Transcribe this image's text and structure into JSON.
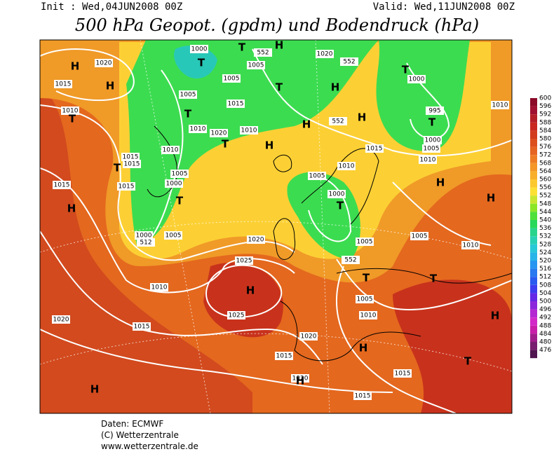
{
  "header": {
    "init": "Init : Wed,04JUN2008 00Z",
    "valid": "Valid: Wed,11JUN2008 00Z",
    "title": "500 hPa Geopot. (gpdm) und Bodendruck (hPa)"
  },
  "footer": [
    "Daten: ECMWF",
    "(C) Wetterzentrale",
    "www.wetterzentrale.de"
  ],
  "legend": {
    "levels": [
      600,
      596,
      592,
      588,
      584,
      580,
      576,
      572,
      568,
      564,
      560,
      556,
      552,
      548,
      544,
      540,
      536,
      532,
      528,
      524,
      520,
      516,
      512,
      508,
      504,
      500,
      496,
      492,
      488,
      484,
      480,
      476
    ],
    "colors": [
      "#8b0a28",
      "#a01030",
      "#b41e28",
      "#c82820",
      "#d23c1e",
      "#dc5020",
      "#e66422",
      "#ee7c24",
      "#f49628",
      "#f8b02c",
      "#fcc830",
      "#fce034",
      "#c8e632",
      "#8ce628",
      "#50e03c",
      "#28d85a",
      "#28d48c",
      "#28d0b4",
      "#28c8d8",
      "#28b4e8",
      "#2896f0",
      "#2878f0",
      "#285af0",
      "#3c3cf0",
      "#6428e6",
      "#8c28dc",
      "#b428d2",
      "#d228c8",
      "#c81eaa",
      "#a01e8c",
      "#781e6e",
      "#501450"
    ]
  },
  "map_labels": [
    "H",
    "1020",
    "H",
    "1015",
    "1010",
    "T",
    "1000",
    "T",
    "1005",
    "T",
    "552",
    "H",
    "1020",
    "552",
    "T",
    "1000",
    "1005",
    "T",
    "1015",
    "1005",
    "T",
    "H",
    "995",
    "T",
    "1010",
    "1010",
    "1020",
    "1010",
    "T",
    "H",
    "H",
    "552",
    "H",
    "1000",
    "1005",
    "1015",
    "1010",
    "1010",
    "1015",
    "T",
    "1015",
    "1015",
    "1015",
    "1005",
    "1000",
    "T",
    "1010",
    "1005",
    "1000",
    "T",
    "H",
    "H",
    "H",
    "1000",
    "512",
    "1005",
    "1020",
    "1005",
    "1005",
    "1010",
    "1025",
    "552",
    "H",
    "T",
    "T",
    "1010",
    "1005",
    "1025",
    "1010",
    "H",
    "1020",
    "1015",
    "1020",
    "H",
    "1015",
    "T",
    "1020",
    "H",
    "1015",
    "H",
    "1015"
  ]
}
